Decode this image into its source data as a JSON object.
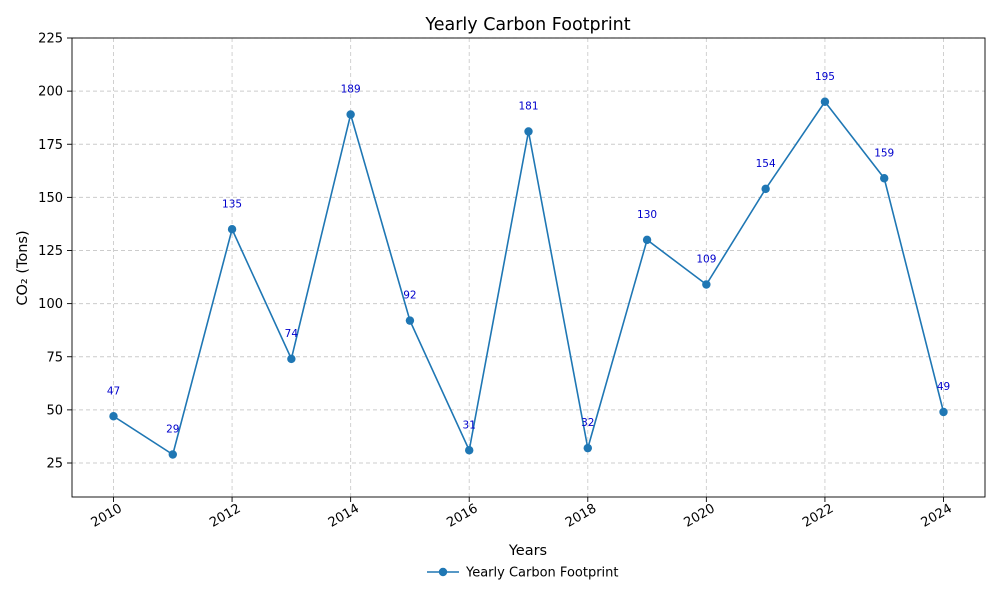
{
  "chart_data": {
    "type": "line",
    "title": "Yearly Carbon Footprint",
    "xlabel": "Years",
    "ylabel": "CO₂ (Tons)",
    "x": [
      2010,
      2011,
      2012,
      2013,
      2014,
      2015,
      2016,
      2017,
      2018,
      2019,
      2020,
      2021,
      2022,
      2023,
      2024
    ],
    "series": [
      {
        "name": "Yearly Carbon Footprint",
        "values": [
          47,
          29,
          135,
          74,
          189,
          92,
          31,
          181,
          32,
          130,
          109,
          154,
          195,
          159,
          49
        ],
        "color": "#1f77b4"
      }
    ],
    "data_label_color": "#0000cc",
    "xticks": [
      "2010",
      "2012",
      "2014",
      "2016",
      "2018",
      "2020",
      "2022",
      "2024"
    ],
    "yticks": [
      "25",
      "50",
      "75",
      "100",
      "125",
      "150",
      "175",
      "200",
      "225"
    ],
    "xlim": [
      2009.3,
      2024.7
    ],
    "ylim": [
      9,
      225
    ],
    "grid": true,
    "legend_position": "bottom-center"
  }
}
